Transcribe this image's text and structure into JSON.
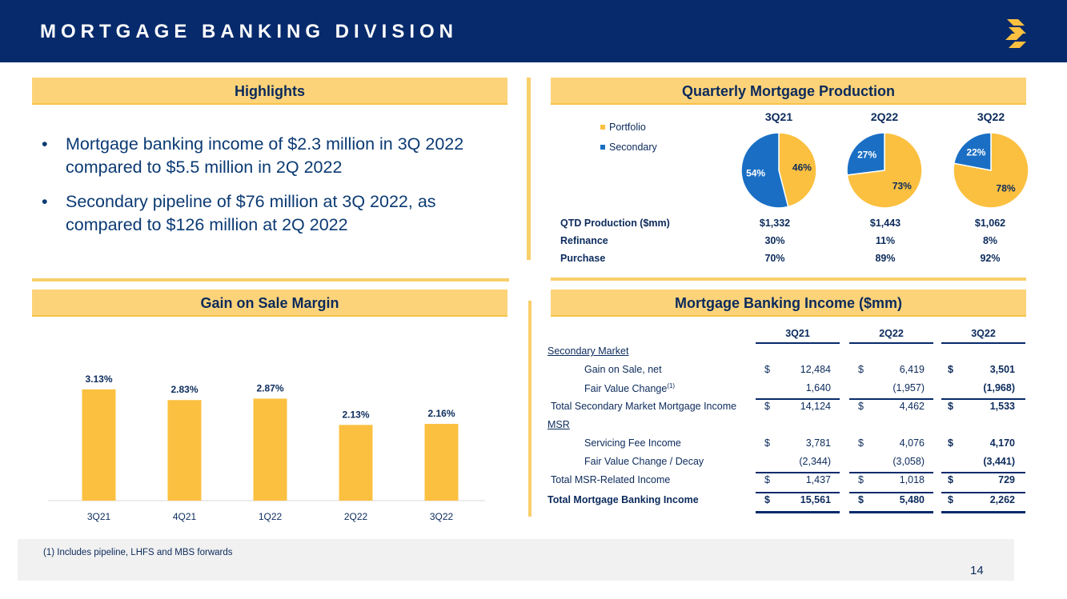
{
  "header": {
    "title": "MORTGAGE BANKING DIVISION",
    "logo": "s-logo-icon"
  },
  "colors": {
    "navy": "#062a6b",
    "gold": "#fbc040",
    "blue": "#1a6fc4",
    "banner": "#fdd37a"
  },
  "highlights": {
    "title": "Highlights",
    "bullets": [
      "Mortgage banking income of $2.3 million in 3Q 2022 compared to $5.5 million in 2Q 2022",
      "Secondary pipeline of $76 million at 3Q 2022, as compared to $126 million at 2Q 2022"
    ]
  },
  "production": {
    "title": "Quarterly Mortgage Production",
    "legend": [
      "Portfolio",
      "Secondary"
    ],
    "quarters": [
      "3Q21",
      "2Q22",
      "3Q22"
    ],
    "rows": [
      {
        "label": "QTD Production ($mm)",
        "values": [
          "$1,332",
          "$1,443",
          "$1,062"
        ]
      },
      {
        "label": "Refinance",
        "values": [
          "30%",
          "11%",
          "8%"
        ]
      },
      {
        "label": "Purchase",
        "values": [
          "70%",
          "89%",
          "92%"
        ]
      }
    ]
  },
  "gain_chart_title": "Gain on Sale Margin",
  "income": {
    "title": "Mortgage Banking Income ($mm)",
    "quarters": [
      "3Q21",
      "2Q22",
      "3Q22"
    ],
    "secondary_header": "Secondary Market",
    "msr_header": "MSR",
    "rows": [
      {
        "label": "Gain on Sale, net",
        "dollar": true,
        "values": [
          "12,484",
          "6,419",
          "3,501"
        ]
      },
      {
        "label": "Fair Value Change",
        "sup": "(1)",
        "values": [
          "1,640",
          "(1,957)",
          "(1,968)"
        ]
      },
      {
        "label": "Total Secondary Market Mortgage Income",
        "dollar": true,
        "values": [
          "14,124",
          "4,462",
          "1,533"
        ]
      },
      {
        "label": "Servicing Fee Income",
        "dollar": true,
        "values": [
          "3,781",
          "4,076",
          "4,170"
        ]
      },
      {
        "label": "Fair Value Change / Decay",
        "values": [
          "(2,344)",
          "(3,058)",
          "(3,441)"
        ]
      },
      {
        "label": "Total MSR-Related Income",
        "dollar": true,
        "values": [
          "1,437",
          "1,018",
          "729"
        ]
      },
      {
        "label": "Total Mortgage Banking Income",
        "dollar": true,
        "values": [
          "15,561",
          "5,480",
          "2,262"
        ]
      }
    ],
    "dollar_sign": "$"
  },
  "footnote": "(1)   Includes pipeline, LHFS and MBS forwards",
  "page_number": "14",
  "chart_data": [
    {
      "type": "bar",
      "title": "Gain on Sale Margin",
      "categories": [
        "3Q21",
        "4Q21",
        "1Q22",
        "2Q22",
        "3Q22"
      ],
      "values": [
        3.13,
        2.83,
        2.87,
        2.13,
        2.16
      ],
      "labels": [
        "3.13%",
        "2.83%",
        "2.87%",
        "2.13%",
        "2.16%"
      ],
      "ylim": [
        0,
        4.5
      ],
      "grid": false
    },
    {
      "type": "pie",
      "title": "3Q21",
      "series": [
        {
          "name": "Portfolio",
          "value": 46,
          "label": "46%"
        },
        {
          "name": "Secondary",
          "value": 54,
          "label": "54%"
        }
      ]
    },
    {
      "type": "pie",
      "title": "2Q22",
      "series": [
        {
          "name": "Portfolio",
          "value": 73,
          "label": "73%"
        },
        {
          "name": "Secondary",
          "value": 27,
          "label": "27%"
        }
      ]
    },
    {
      "type": "pie",
      "title": "3Q22",
      "series": [
        {
          "name": "Portfolio",
          "value": 78,
          "label": "78%"
        },
        {
          "name": "Secondary",
          "value": 22,
          "label": "22%"
        }
      ]
    }
  ]
}
